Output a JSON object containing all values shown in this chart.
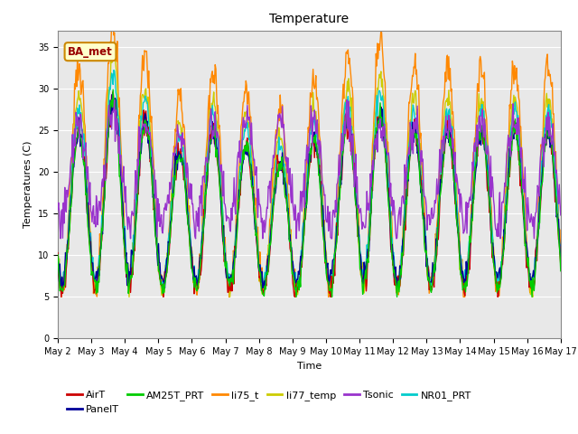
{
  "title": "Temperature",
  "xlabel": "Time",
  "ylabel": "Temperatures (C)",
  "ylim": [
    0,
    37
  ],
  "yticks": [
    0,
    5,
    10,
    15,
    20,
    25,
    30,
    35
  ],
  "legend_label": "BA_met",
  "series_colors": {
    "AirT": "#cc0000",
    "PanelT": "#000099",
    "AM25T_PRT": "#00cc00",
    "li75_t": "#ff8800",
    "li77_temp": "#cccc00",
    "Tsonic": "#9933cc",
    "NR01_PRT": "#00cccc"
  },
  "line_width": 1.0,
  "num_points": 720,
  "plot_bg": "#e8e8e8",
  "fig_bg": "#ffffff",
  "grid_color": "#ffffff",
  "title_fontsize": 10,
  "label_fontsize": 8,
  "tick_fontsize": 7,
  "legend_fontsize": 8
}
